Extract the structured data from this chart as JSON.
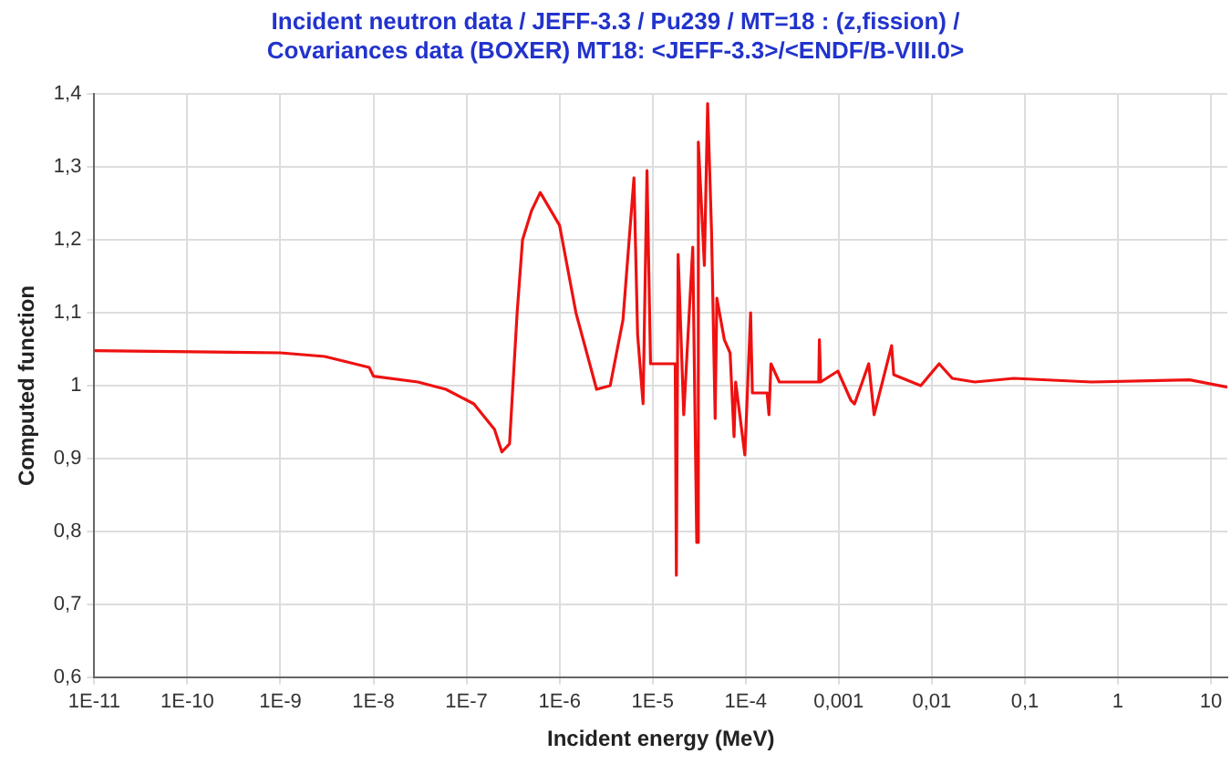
{
  "chart_data": {
    "type": "line",
    "title": "Incident neutron data / JEFF-3.3 / Pu239 / MT=18 : (z,fission) / Covariances data (BOXER) MT18: <JEFF-3.3>/<ENDF/B-VIII.0>",
    "xlabel": "Incident energy (MeV)",
    "ylabel": "Computed function",
    "log": "x",
    "grid": true,
    "legend": false,
    "marker": "none",
    "line_style": "solid",
    "xlim": [
      1e-11,
      15
    ],
    "ylim": [
      0.6,
      1.4
    ],
    "xticks": [
      {
        "value": 1e-11,
        "label": "1E-11"
      },
      {
        "value": 1e-10,
        "label": "1E-10"
      },
      {
        "value": 1e-09,
        "label": "1E-9"
      },
      {
        "value": 1e-08,
        "label": "1E-8"
      },
      {
        "value": 1e-07,
        "label": "1E-7"
      },
      {
        "value": 1e-06,
        "label": "1E-6"
      },
      {
        "value": 1e-05,
        "label": "1E-5"
      },
      {
        "value": 0.0001,
        "label": "1E-4"
      },
      {
        "value": 0.001,
        "label": "0,001"
      },
      {
        "value": 0.01,
        "label": "0,01"
      },
      {
        "value": 0.1,
        "label": "0,1"
      },
      1,
      10
    ],
    "yticks": [
      {
        "value": 0.6,
        "label": "0,6"
      },
      {
        "value": 0.7,
        "label": "0,7"
      },
      {
        "value": 0.8,
        "label": "0,8"
      },
      {
        "value": 0.9,
        "label": "0,9"
      },
      1,
      {
        "value": 1.1,
        "label": "1,1"
      },
      {
        "value": 1.2,
        "label": "1,2"
      },
      {
        "value": 1.3,
        "label": "1,3"
      },
      {
        "value": 1.4,
        "label": "1,4"
      }
    ],
    "series": [
      {
        "color": "#ee1111",
        "x": [
          1e-11,
          1e-09,
          3e-09,
          9e-09,
          1e-08,
          3e-08,
          6e-08,
          1.2e-07,
          2e-07,
          2.4e-07,
          2.9e-07,
          3.5e-07,
          4e-07,
          5e-07,
          6.2e-07,
          1e-06,
          1.5e-06,
          2.5e-06,
          3.5e-06,
          4.8e-06,
          6.3e-06,
          6.9e-06,
          7.9e-06,
          8.7e-06,
          9.5e-06,
          1.38e-05,
          1.75e-05,
          1.8e-05,
          1.88e-05,
          2.16e-05,
          2.7e-05,
          2.98e-05,
          3.1e-05,
          3.6e-05,
          3.9e-05,
          4.3e-05,
          4.7e-05,
          4.9e-05,
          5.9e-05,
          6.8e-05,
          7.5e-05,
          7.8e-05,
          9.8e-05,
          0.000113,
          0.000118,
          0.00017,
          0.000178,
          0.000187,
          0.00023,
          0.00061,
          0.00062,
          0.00064,
          0.00098,
          0.00135,
          0.00148,
          0.0021,
          0.0024,
          0.0037,
          0.0039,
          0.0076,
          0.012,
          0.0166,
          0.029,
          0.076,
          0.52,
          5.9,
          15
        ],
        "values": [
          1.048,
          1.045,
          1.04,
          1.025,
          1.013,
          1.005,
          0.995,
          0.975,
          0.94,
          0.909,
          0.92,
          1.1,
          1.2,
          1.24,
          1.265,
          1.22,
          1.1,
          0.995,
          1.0,
          1.09,
          1.285,
          1.07,
          0.975,
          1.295,
          1.03,
          1.03,
          1.03,
          0.74,
          1.18,
          0.96,
          1.19,
          0.785,
          1.334,
          1.165,
          1.387,
          1.21,
          0.955,
          1.12,
          1.063,
          1.045,
          0.93,
          1.005,
          0.905,
          1.1,
          0.99,
          0.99,
          0.96,
          1.03,
          1.005,
          1.005,
          1.063,
          1.005,
          1.02,
          0.98,
          0.975,
          1.03,
          0.96,
          1.055,
          1.015,
          1.0,
          1.03,
          1.01,
          1.005,
          1.01,
          1.005,
          1.008,
          0.998
        ]
      }
    ]
  }
}
